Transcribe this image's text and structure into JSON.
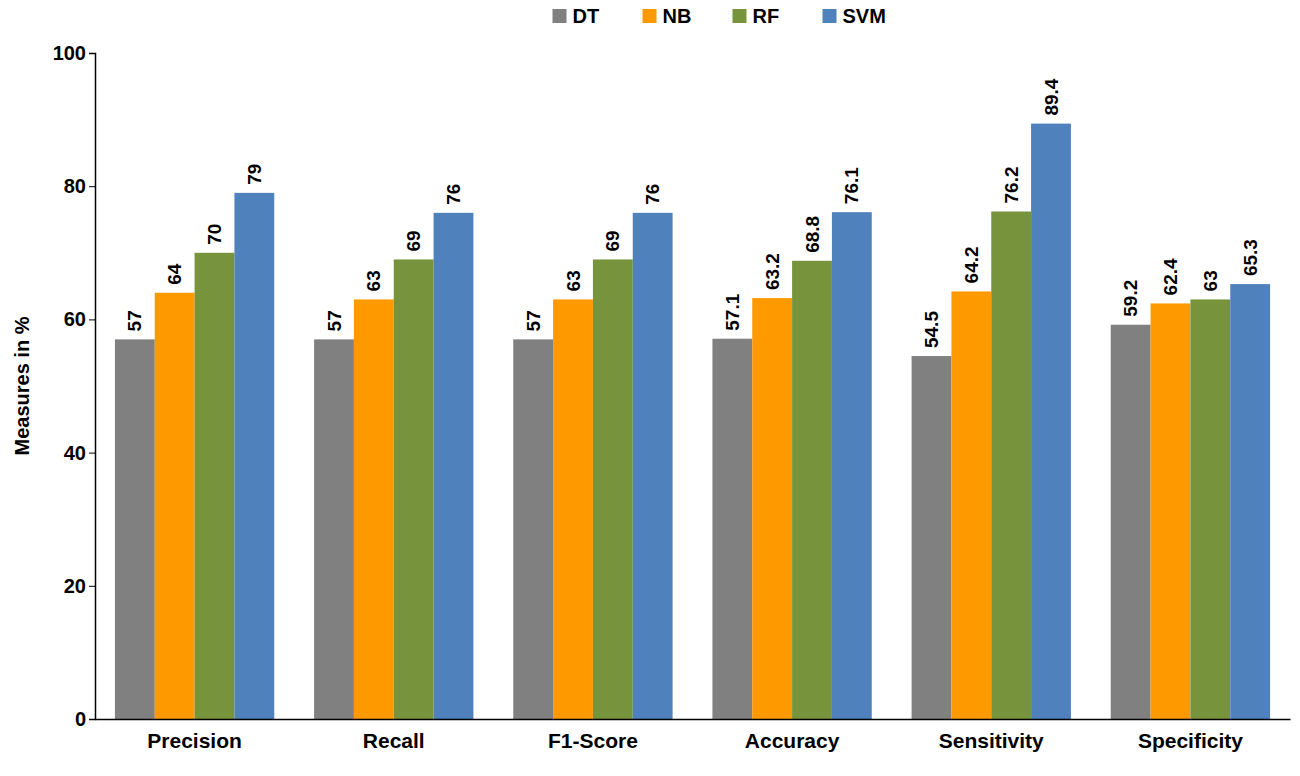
{
  "chart_data": {
    "type": "bar",
    "y_label": "Measures in %",
    "categories": [
      "Precision",
      "Recall",
      "F1-Score",
      "Accuracy",
      "Sensitivity",
      "Specificity"
    ],
    "series": [
      {
        "name": "DT",
        "color": "#808080",
        "values": [
          57,
          57,
          57,
          57.1,
          54.5,
          59.2
        ]
      },
      {
        "name": "NB",
        "color": "#ff9900",
        "values": [
          64,
          63,
          63,
          63.2,
          64.2,
          62.4
        ]
      },
      {
        "name": "RF",
        "color": "#77933c",
        "values": [
          70,
          69,
          69,
          68.8,
          76.2,
          63
        ]
      },
      {
        "name": "SVM",
        "color": "#4f81bd",
        "values": [
          79,
          76,
          76,
          76.1,
          89.4,
          65.3
        ]
      }
    ],
    "ylim": [
      0,
      100
    ],
    "yticks": [
      0,
      20,
      40,
      60,
      80,
      100
    ],
    "grid": false,
    "legend": "top",
    "data_labels": true
  }
}
